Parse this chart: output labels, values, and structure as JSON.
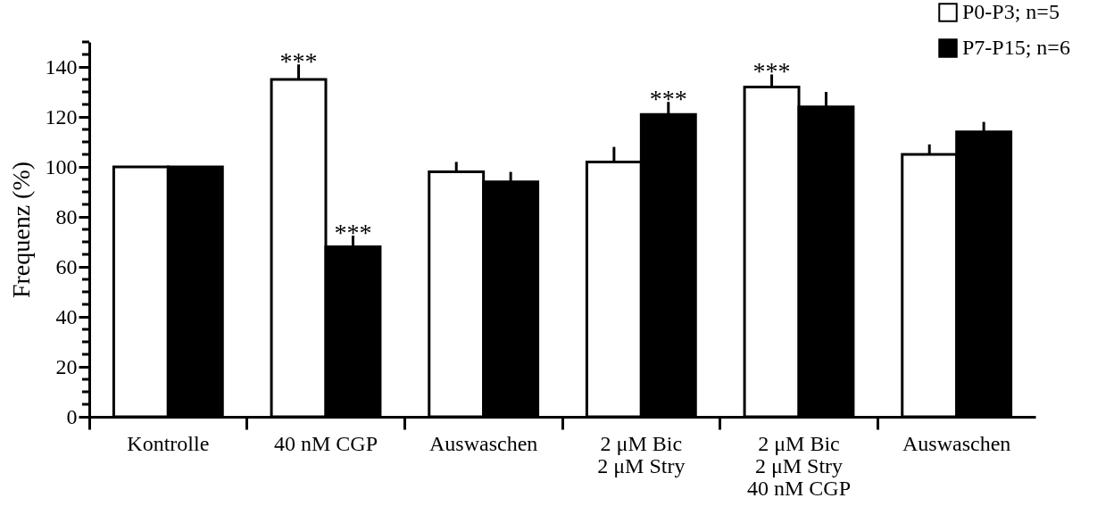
{
  "chart_data": {
    "type": "bar",
    "ylabel": "Frequenz (%)",
    "categories": [
      "Kontrolle",
      "40 nM CGP",
      "Auswaschen",
      "2 μM Bic\n2 μM Stry",
      "2 μM Bic\n2 μM Stry\n40 nM CGP",
      "Auswaschen"
    ],
    "series": [
      {
        "name": "P0-P3; n=5",
        "color": "#ffffff",
        "values": [
          100,
          135,
          98,
          102,
          132,
          105
        ],
        "errors": [
          null,
          [
            135,
            141
          ],
          [
            98,
            102
          ],
          [
            102,
            108
          ],
          [
            132,
            137
          ],
          [
            105,
            109
          ]
        ]
      },
      {
        "name": "P7-P15; n=6",
        "color": "#000000",
        "values": [
          100,
          68,
          94,
          121,
          124,
          114
        ],
        "errors": [
          null,
          [
            68,
            72.5
          ],
          [
            94,
            98
          ],
          [
            121,
            126
          ],
          [
            124,
            130
          ],
          [
            114,
            118
          ]
        ]
      }
    ],
    "ylim": [
      0,
      150
    ],
    "yticks": [
      0,
      {
        "value": 5,
        "label": null
      },
      {
        "value": 10,
        "label": null
      },
      {
        "value": 15,
        "label": null
      },
      20,
      {
        "value": 25,
        "label": null
      },
      {
        "value": 30,
        "label": null
      },
      {
        "value": 35,
        "label": null
      },
      40,
      {
        "value": 45,
        "label": null
      },
      {
        "value": 50,
        "label": null
      },
      {
        "value": 55,
        "label": null
      },
      60,
      {
        "value": 65,
        "label": null
      },
      {
        "value": 70,
        "label": null
      },
      {
        "value": 75,
        "label": null
      },
      80,
      {
        "value": 85,
        "label": null
      },
      {
        "value": 90,
        "label": null
      },
      {
        "value": 95,
        "label": null
      },
      100,
      {
        "value": 105,
        "label": null
      },
      {
        "value": 110,
        "label": null
      },
      {
        "value": 115,
        "label": null
      },
      120,
      {
        "value": 125,
        "label": null
      },
      {
        "value": 130,
        "label": null
      },
      {
        "value": 135,
        "label": null
      },
      140,
      {
        "value": 145,
        "label": null
      },
      {
        "value": 150,
        "label": null
      }
    ],
    "annotations": [
      {
        "text": "***",
        "x": "40 nM CGP",
        "y": 135
      },
      {
        "text": "***",
        "x": "40 nM CGP",
        "y": 68
      },
      {
        "text": "***",
        "x": "2 μM Bic\n2 μM Stry",
        "y": 121
      },
      {
        "text": "***",
        "x": "2 μM Bic\n2 μM Stry\n40 nM CGP",
        "y": 132
      }
    ],
    "legend": "top right",
    "grid": false
  }
}
